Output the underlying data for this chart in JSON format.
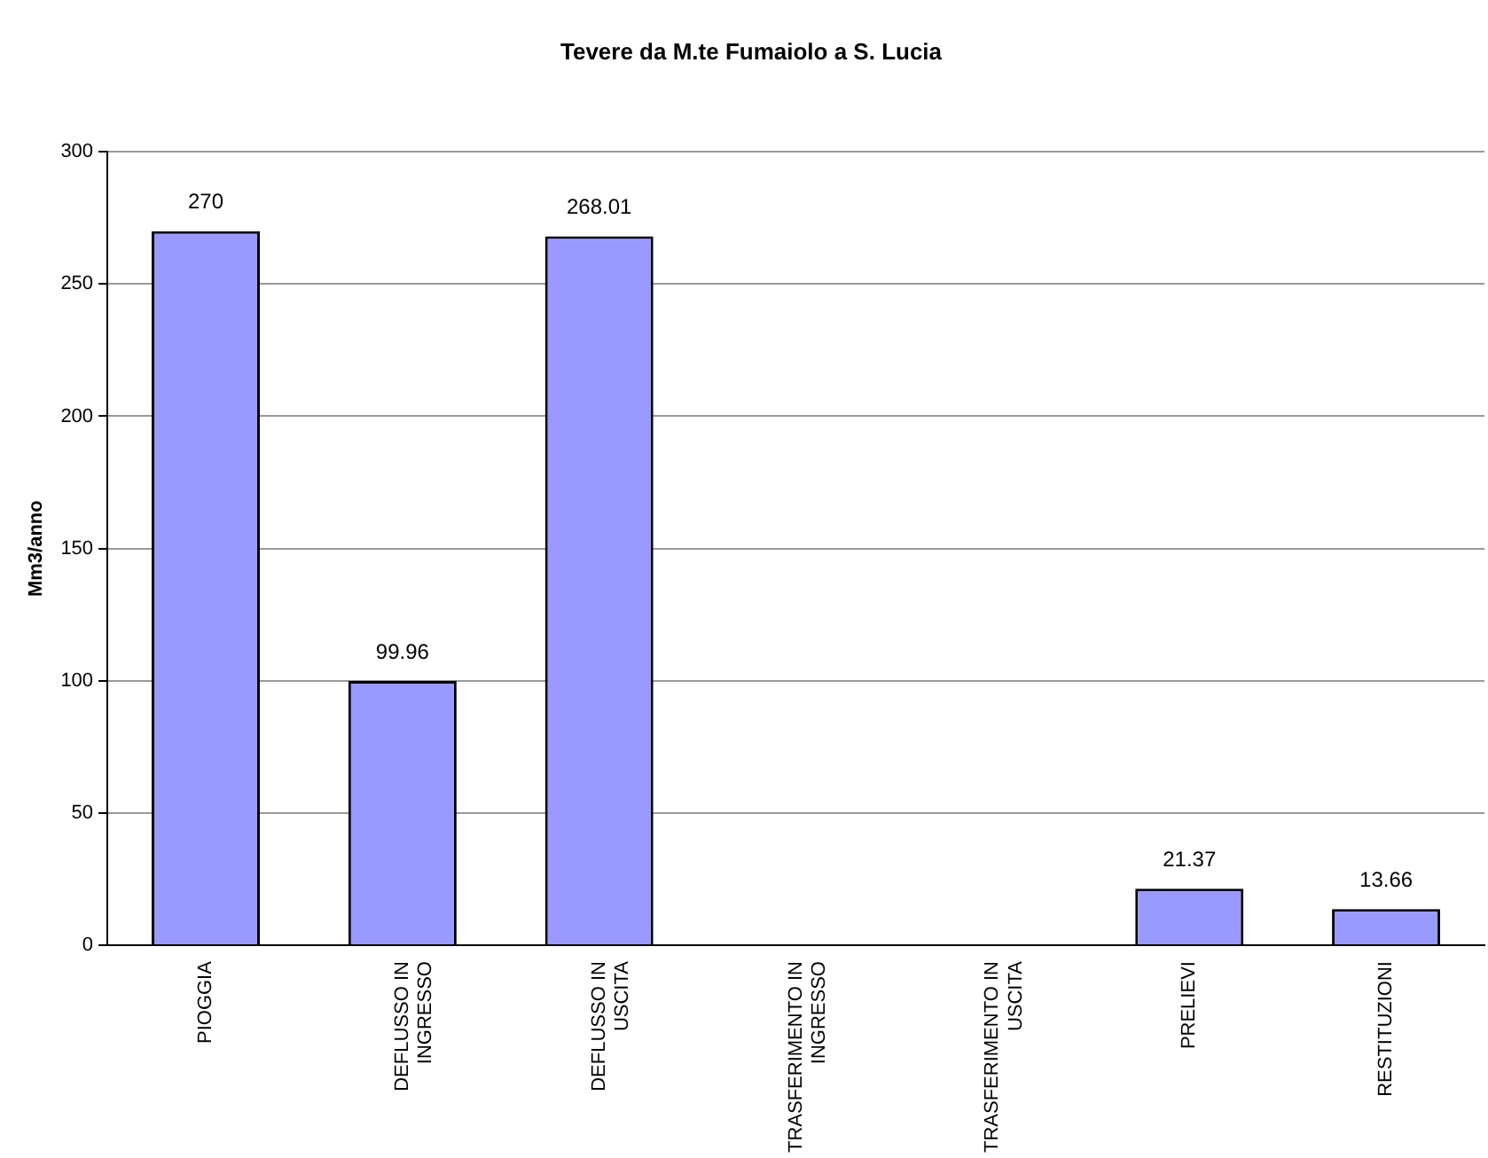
{
  "chart_data": {
    "type": "bar",
    "title": "Tevere da M.te Fumaiolo a S. Lucia",
    "ylabel": "Mm3/anno",
    "categories": [
      "PIOGGIA",
      "DEFLUSSO IN INGRESSO",
      "DEFLUSSO IN USCITA",
      "TRASFERIMENTO IN INGRESSO",
      "TRASFERIMENTO IN USCITA",
      "PRELIEVI",
      "RESTITUZIONI"
    ],
    "values": [
      270,
      99.96,
      268.01,
      0,
      0,
      21.37,
      13.66
    ],
    "value_labels": [
      "270",
      "99.96",
      "268.01",
      null,
      null,
      "21.37",
      "13.66"
    ],
    "color": "#9999ff",
    "ylim": [
      0,
      300
    ],
    "yticks": [
      0,
      50,
      100,
      150,
      200,
      250,
      300
    ],
    "grid": "y",
    "legend": false
  }
}
